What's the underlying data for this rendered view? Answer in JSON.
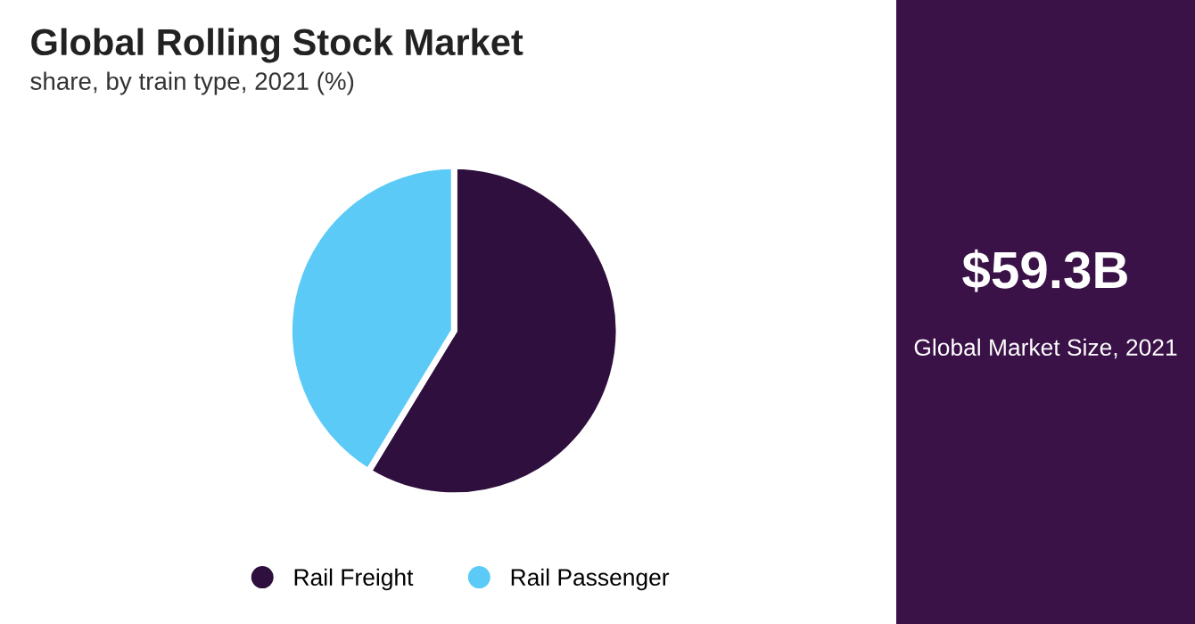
{
  "chart_data": [
    {
      "type": "pie",
      "title": "Global Rolling Stock Market",
      "subtitle": "share, by train type, 2021 (%)",
      "categories": [
        "Rail Freight",
        "Rail Passenger"
      ],
      "values": [
        58.7,
        41.3
      ],
      "colors": [
        "#2e0f3d",
        "#5ccaf7"
      ],
      "legend": "bottom"
    },
    {
      "type": "other",
      "title": "$59.3B",
      "subtitle": "Global Market Size, 2021"
    }
  ]
}
